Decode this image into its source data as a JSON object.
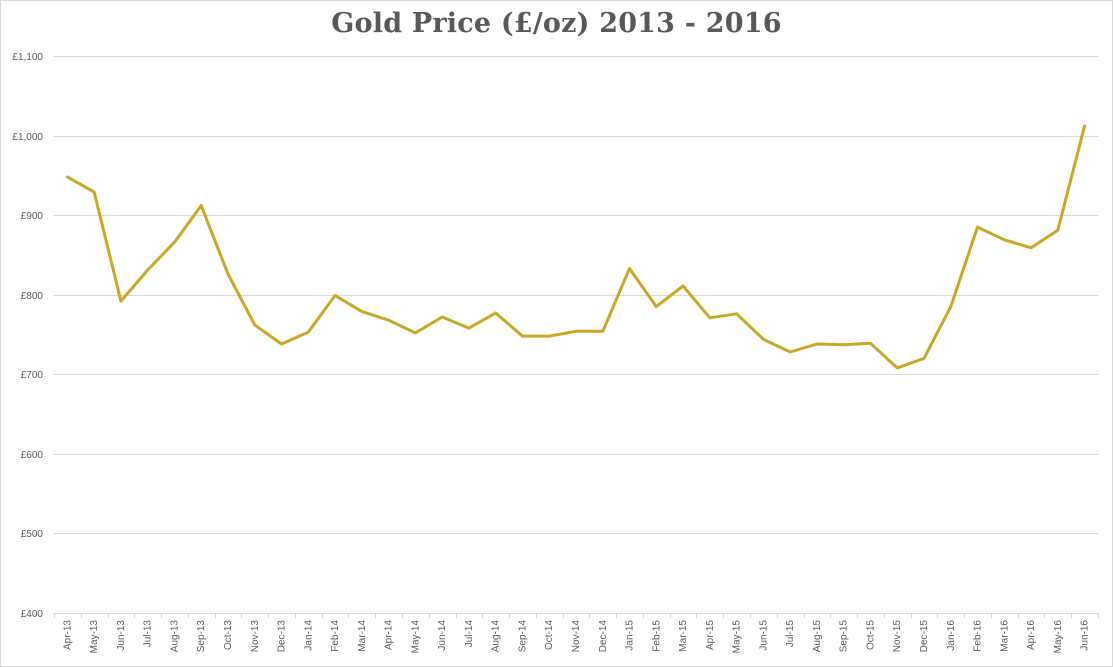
{
  "chart_data": {
    "type": "line",
    "title": "Gold Price (£/oz) 2013 - 2016",
    "xlabel": "",
    "ylabel": "",
    "ylim": [
      400,
      1100
    ],
    "y_ticks": [
      400,
      500,
      600,
      700,
      800,
      900,
      1000,
      1100
    ],
    "y_tick_labels": [
      "£400",
      "£500",
      "£600",
      "£700",
      "£800",
      "£900",
      "£1,000",
      "£1,100"
    ],
    "grid": true,
    "legend": "none",
    "line_color": "#C9A825",
    "categories": [
      "Apr-13",
      "May-13",
      "Jun-13",
      "Jul-13",
      "Aug-13",
      "Sep-13",
      "Oct-13",
      "Nov-13",
      "Dec-13",
      "Jan-14",
      "Feb-14",
      "Mar-14",
      "Apr-14",
      "May-14",
      "Jun-14",
      "Jul-14",
      "Aug-14",
      "Sep-14",
      "Oct-14",
      "Nov-14",
      "Dec-14",
      "Jan-15",
      "Feb-15",
      "Mar-15",
      "Apr-15",
      "May-15",
      "Jun-15",
      "Jul-15",
      "Aug-15",
      "Sep-15",
      "Oct-15",
      "Nov-15",
      "Dec-15",
      "Jan-16",
      "Feb-16",
      "Mar-16",
      "Apr-16",
      "May-16",
      "Jun-16"
    ],
    "series": [
      {
        "name": "",
        "values": [
          948,
          929,
          792,
          831,
          866,
          912,
          826,
          762,
          738,
          753,
          799,
          779,
          768,
          752,
          772,
          758,
          777,
          748,
          748,
          754,
          754,
          833,
          785,
          811,
          771,
          776,
          744,
          728,
          738,
          737,
          739,
          708,
          720,
          785,
          885,
          869,
          859,
          881,
          1012
        ]
      }
    ]
  }
}
